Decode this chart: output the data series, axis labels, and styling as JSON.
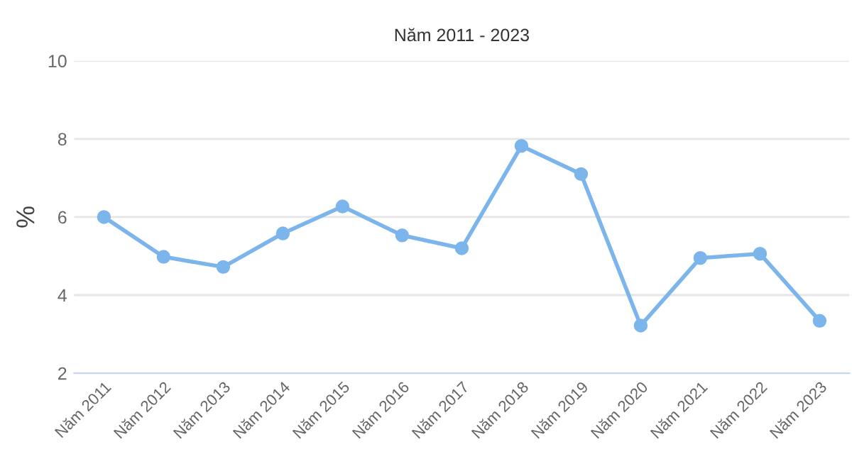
{
  "chart_data": {
    "type": "line",
    "title": "Năm 2011 - 2023",
    "ylabel": "%",
    "categories": [
      "Năm 2011",
      "Năm 2012",
      "Năm 2013",
      "Năm 2014",
      "Năm 2015",
      "Năm 2016",
      "Năm 2017",
      "Năm 2018",
      "Năm 2019",
      "Năm 2020",
      "Năm 2021",
      "Năm 2022",
      "Năm 2023"
    ],
    "series": [
      {
        "color": "#7cb5ec",
        "values": [
          6.0,
          4.98,
          4.72,
          5.58,
          6.27,
          5.53,
          5.2,
          7.82,
          7.1,
          3.22,
          4.95,
          5.06,
          3.34
        ]
      }
    ],
    "ylim": [
      2,
      10
    ],
    "yticks": [
      2,
      4,
      6,
      8,
      10
    ],
    "grid": "y",
    "marker": "circle",
    "line_style": "solid"
  }
}
